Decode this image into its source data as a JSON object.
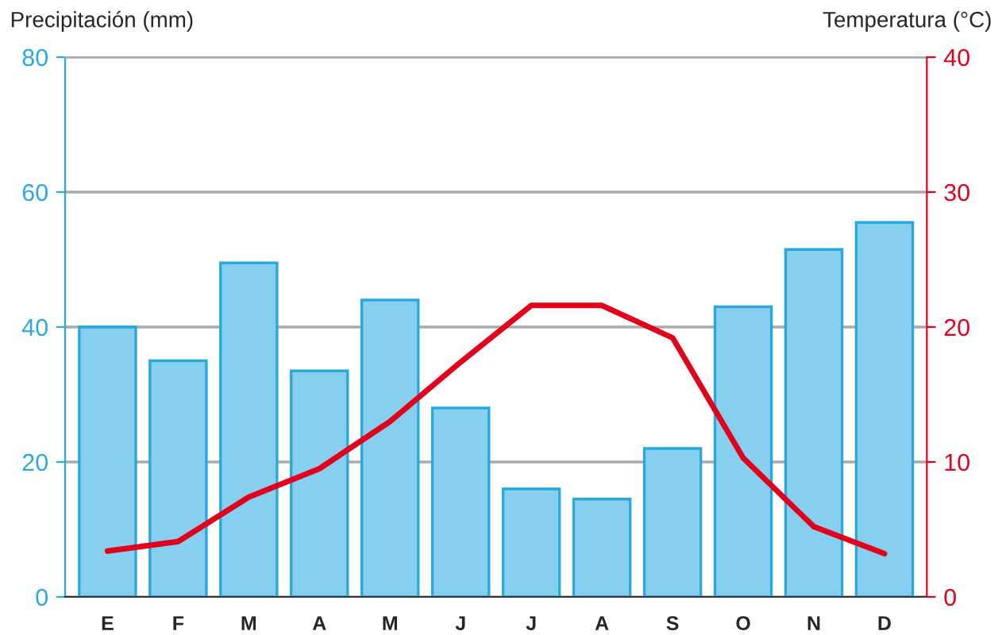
{
  "chart_data": {
    "type": "bar",
    "ylabel": "Precipitación (mm)",
    "y2label": "Temperatura (°C)",
    "categories": [
      "E",
      "F",
      "M",
      "A",
      "M",
      "J",
      "J",
      "A",
      "S",
      "O",
      "N",
      "D"
    ],
    "series": [
      {
        "color": "#87cfee",
        "values": [
          40,
          35,
          49.5,
          33.5,
          44,
          28,
          16,
          14.5,
          22,
          43,
          51.5,
          55.5
        ]
      },
      {
        "type": "line",
        "axis": "y2",
        "color": "#e2001a",
        "values": [
          3.4,
          4.1,
          7.4,
          9.5,
          13,
          17.4,
          21.6,
          21.6,
          19.2,
          10.3,
          5.2,
          3.2
        ]
      }
    ],
    "ylim": [
      0,
      80
    ],
    "yticks": [
      0,
      20,
      40,
      60,
      80
    ],
    "y2lim": [
      0,
      40
    ],
    "y2ticks": [
      0,
      10,
      20,
      30,
      40
    ],
    "grid": "y",
    "marker": "none",
    "line_style": "solid"
  }
}
